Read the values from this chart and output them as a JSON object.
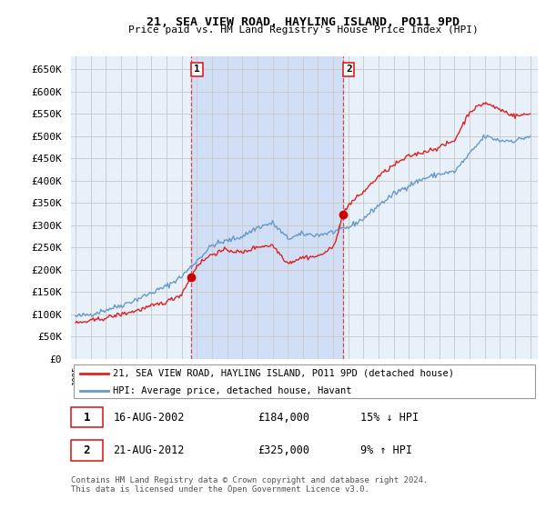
{
  "title": "21, SEA VIEW ROAD, HAYLING ISLAND, PO11 9PD",
  "subtitle": "Price paid vs. HM Land Registry's House Price Index (HPI)",
  "ylim": [
    0,
    680000
  ],
  "yticks": [
    0,
    50000,
    100000,
    150000,
    200000,
    250000,
    300000,
    350000,
    400000,
    450000,
    500000,
    550000,
    600000,
    650000
  ],
  "xlim_start": 1994.7,
  "xlim_end": 2025.5,
  "sale1_date": 2002.62,
  "sale1_price": 184000,
  "sale2_date": 2012.63,
  "sale2_price": 325000,
  "red_line_color": "#dd2222",
  "blue_line_color": "#6699cc",
  "shade_color": "#ccddf5",
  "marker_color": "#cc0000",
  "grid_color": "#cccccc",
  "bg_color": "#e8f0fa",
  "legend_label_red": "21, SEA VIEW ROAD, HAYLING ISLAND, PO11 9PD (detached house)",
  "legend_label_blue": "HPI: Average price, detached house, Havant",
  "transaction1_num": "1",
  "transaction1_date": "16-AUG-2002",
  "transaction1_price": "£184,000",
  "transaction1_hpi": "15% ↓ HPI",
  "transaction2_num": "2",
  "transaction2_date": "21-AUG-2012",
  "transaction2_price": "£325,000",
  "transaction2_hpi": "9% ↑ HPI",
  "footer": "Contains HM Land Registry data © Crown copyright and database right 2024.\nThis data is licensed under the Open Government Licence v3.0."
}
